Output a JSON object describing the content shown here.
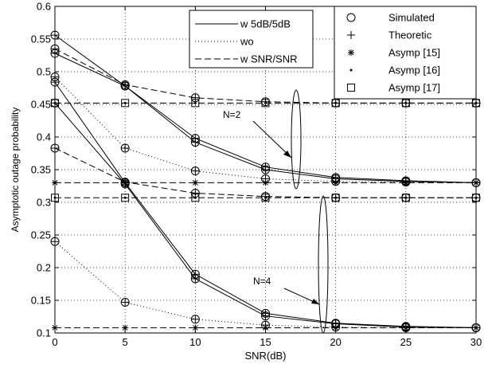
{
  "chart_data": {
    "type": "line",
    "xlabel": "SNR(dB)",
    "ylabel": "Asymptotic outage probability",
    "xlim": [
      0,
      30
    ],
    "ylim": [
      0.1,
      0.6
    ],
    "x": [
      0,
      5,
      10,
      15,
      20,
      25,
      30
    ],
    "xticks": [
      "0",
      "5",
      "10",
      "15",
      "20",
      "25",
      "30"
    ],
    "yticks": [
      "0.1",
      "0.15",
      "0.2",
      "0.25",
      "0.3",
      "0.35",
      "0.4",
      "0.45",
      "0.5",
      "0.55",
      "0.6"
    ],
    "grid": true,
    "legend_lines": {
      "placement": "top-center",
      "entries": [
        {
          "label": "w 5dB/5dB",
          "style": "solid"
        },
        {
          "label": "wo",
          "style": "dotted"
        },
        {
          "label": "w SNR/SNR",
          "style": "dashed"
        }
      ]
    },
    "legend_markers": {
      "placement": "top-right",
      "entries": [
        {
          "label": "Simulated",
          "marker": "circle"
        },
        {
          "label": "Theoretic",
          "marker": "plus"
        },
        {
          "label": "Asymp [15]",
          "marker": "star"
        },
        {
          "label": "Asymp [16]",
          "marker": "dot"
        },
        {
          "label": "Asymp [17]",
          "marker": "square"
        }
      ]
    },
    "annotations": [
      "N=2",
      "N=4"
    ],
    "series": [
      {
        "style": "solid",
        "group": "N=2",
        "values": [
          0.556,
          0.478,
          0.398,
          0.354,
          0.338,
          0.333,
          0.33
        ]
      },
      {
        "style": "solid",
        "group": "N=2",
        "values": [
          0.528,
          0.478,
          0.392,
          0.35,
          0.336,
          0.332,
          0.33
        ]
      },
      {
        "style": "dashed",
        "group": "N=2",
        "values": [
          0.535,
          0.48,
          0.46,
          0.454,
          0.452,
          0.452,
          0.452
        ]
      },
      {
        "style": "dotted",
        "group": "N=2",
        "values": [
          0.492,
          0.383,
          0.348,
          0.336,
          0.332,
          0.331,
          0.33
        ]
      },
      {
        "style": "solid",
        "group": "N=4",
        "values": [
          0.484,
          0.33,
          0.19,
          0.13,
          0.115,
          0.11,
          0.108
        ]
      },
      {
        "style": "solid",
        "group": "N=4",
        "values": [
          0.452,
          0.328,
          0.183,
          0.126,
          0.114,
          0.109,
          0.108
        ]
      },
      {
        "style": "dashed",
        "group": "N=4",
        "values": [
          0.383,
          0.331,
          0.314,
          0.309,
          0.307,
          0.307,
          0.307
        ]
      },
      {
        "style": "dotted",
        "group": "N=4",
        "values": [
          0.24,
          0.147,
          0.121,
          0.112,
          0.109,
          0.108,
          0.108
        ]
      }
    ],
    "asymptotes": [
      {
        "marker": "square",
        "value": 0.452
      },
      {
        "marker": "star",
        "value": 0.33
      },
      {
        "marker": "square",
        "value": 0.307
      },
      {
        "marker": "star",
        "value": 0.108
      }
    ]
  }
}
